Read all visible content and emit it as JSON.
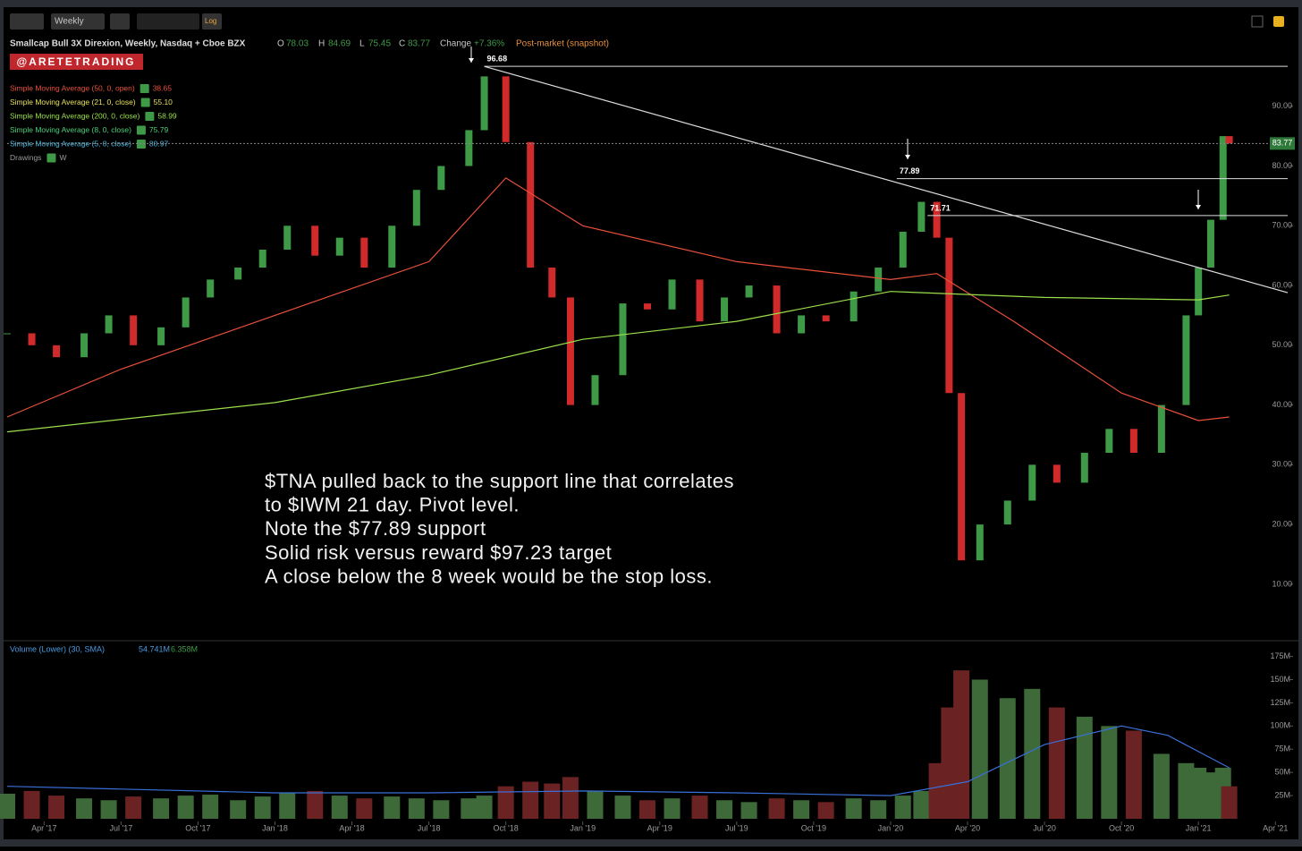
{
  "toolbar": {
    "interval": "Weekly",
    "log": "Log"
  },
  "header": {
    "symbol": "Smallcap Bull 3X Direxion, Weekly, Nasdaq + Cboe BZX",
    "open_label": "O",
    "open": "78.03",
    "high_label": "H",
    "high": "84.69",
    "low_label": "L",
    "low": "75.45",
    "close_label": "C",
    "close": "83.77",
    "change_label": "Change",
    "change": "+7.36%",
    "session": "Post-market (snapshot)",
    "badge": "@ARETETRADING"
  },
  "studies": [
    {
      "label": "Simple Moving Average (50, 0, open)",
      "value": "38.65",
      "color": "#e8503a"
    },
    {
      "label": "Simple Moving Average (21, 0, close)",
      "value": "55.10",
      "color": "#e6e05a"
    },
    {
      "label": "Simple Moving Average (200, 0, close)",
      "value": "58.99",
      "color": "#9be04a"
    },
    {
      "label": "Simple Moving Average (8, 0, close)",
      "value": "75.79",
      "color": "#4ad07a"
    },
    {
      "label": "Simple Moving Average (5, 0, close)",
      "value": "80.97",
      "color": "#4ab8e0"
    },
    {
      "label": "Drawings",
      "value": "W",
      "color": "#9a9a9a"
    }
  ],
  "volume_study": {
    "label": "Volume (Lower) (30, SMA)",
    "value": "54.741M",
    "value2": "6.358M"
  },
  "annotation": [
    "$TNA pulled back to the support line that correlates",
    "to $IWM 21 day. Pivot level.",
    "Note the $77.89 support",
    "Solid risk versus reward $97.23 target",
    "A close below the 8 week would be the stop loss."
  ],
  "chart_data": [
    {
      "type": "candlestick",
      "x": [
        2017.13,
        2017.21,
        2017.29,
        2017.38,
        2017.46,
        2017.54,
        2017.63,
        2017.71,
        2017.79,
        2017.88,
        2017.96,
        2018.04,
        2018.13,
        2018.21,
        2018.29,
        2018.38,
        2018.46,
        2018.54,
        2018.63,
        2018.68,
        2018.75,
        2018.83,
        2018.9,
        2018.96,
        2019.04,
        2019.13,
        2019.21,
        2019.29,
        2019.38,
        2019.46,
        2019.54,
        2019.63,
        2019.71,
        2019.79,
        2019.88,
        2019.96,
        2020.04,
        2020.1,
        2020.15,
        2020.19,
        2020.23,
        2020.29,
        2020.38,
        2020.46,
        2020.54,
        2020.63,
        2020.71,
        2020.79,
        2020.88,
        2020.96,
        2021.0,
        2021.04,
        2021.08,
        2021.1
      ],
      "series": [
        {
          "name": "Close",
          "values": [
            52,
            50,
            48,
            52,
            55,
            50,
            53,
            58,
            61,
            63,
            66,
            70,
            65,
            68,
            63,
            70,
            76,
            80,
            86,
            95,
            84,
            63,
            58,
            40,
            45,
            57,
            56,
            61,
            54,
            58,
            60,
            52,
            55,
            54,
            59,
            63,
            69,
            74,
            68,
            42,
            14,
            20,
            24,
            30,
            27,
            32,
            36,
            32,
            40,
            55,
            63,
            71,
            85,
            83.77
          ],
          "up_color": "#3f9a48",
          "down_color": "#d02a2a"
        },
        {
          "name": "SMA 50",
          "color": "#e8503a",
          "x": [
            2017.13,
            2017.5,
            2018.0,
            2018.5,
            2018.75,
            2019.0,
            2019.5,
            2020.0,
            2020.15,
            2020.4,
            2020.75,
            2021.0,
            2021.1
          ],
          "values": [
            38,
            46,
            55,
            64,
            78,
            70,
            64,
            61,
            62,
            54,
            42,
            37.4,
            38
          ]
        },
        {
          "name": "SMA 200",
          "color": "#9be04a",
          "x": [
            2017.13,
            2018.0,
            2018.5,
            2019.0,
            2019.5,
            2020.0,
            2020.5,
            2021.0,
            2021.1
          ],
          "values": [
            35.5,
            40.4,
            45,
            51,
            54,
            59,
            58,
            57.6,
            58.4
          ]
        }
      ],
      "levels": [
        {
          "value": 96.68,
          "from": 2018.68
        },
        {
          "value": 77.89,
          "from": 2020.02
        },
        {
          "value": 71.71,
          "from": 2020.12
        }
      ],
      "trendline": {
        "x": [
          2018.68,
          2021.29
        ],
        "y": [
          96.68,
          58.8
        ]
      },
      "last_price": 83.77,
      "xlim": [
        2017.13,
        2021.29
      ],
      "ylim": [
        0.7,
        98.8
      ],
      "yticks": [
        {
          "value": 10,
          "label": "10.00"
        },
        {
          "value": 20,
          "label": "20.00"
        },
        {
          "value": 30,
          "label": "30.00"
        },
        {
          "value": 40,
          "label": "40.00"
        },
        {
          "value": 50,
          "label": "50.00"
        },
        {
          "value": 60,
          "label": "60.00"
        },
        {
          "value": 70,
          "label": "70.00"
        },
        {
          "value": 80,
          "label": "80.00"
        },
        {
          "value": 90,
          "label": "90.00"
        }
      ]
    },
    {
      "type": "bar",
      "x": [
        2017.13,
        2017.21,
        2017.29,
        2017.38,
        2017.46,
        2017.54,
        2017.63,
        2017.71,
        2017.79,
        2017.88,
        2017.96,
        2018.04,
        2018.13,
        2018.21,
        2018.29,
        2018.38,
        2018.46,
        2018.54,
        2018.63,
        2018.68,
        2018.75,
        2018.83,
        2018.9,
        2018.96,
        2019.04,
        2019.13,
        2019.21,
        2019.29,
        2019.38,
        2019.46,
        2019.54,
        2019.63,
        2019.71,
        2019.79,
        2019.88,
        2019.96,
        2020.04,
        2020.1,
        2020.15,
        2020.19,
        2020.23,
        2020.29,
        2020.38,
        2020.46,
        2020.54,
        2020.63,
        2020.71,
        2020.79,
        2020.88,
        2020.96,
        2021.0,
        2021.04,
        2021.08,
        2021.1
      ],
      "values": [
        27,
        30,
        25,
        22,
        20,
        24,
        22,
        25,
        26,
        20,
        24,
        28,
        30,
        25,
        22,
        24,
        22,
        20,
        22,
        25,
        35,
        40,
        38,
        45,
        30,
        25,
        20,
        22,
        25,
        20,
        18,
        22,
        20,
        18,
        22,
        20,
        25,
        30,
        60,
        120,
        160,
        150,
        130,
        140,
        120,
        110,
        100,
        95,
        70,
        60,
        55,
        50,
        55,
        35
      ],
      "sma": {
        "name": "Volume SMA",
        "color": "#3a6fd8",
        "x": [
          2017.13,
          2017.5,
          2018.0,
          2018.5,
          2019.0,
          2019.5,
          2020.0,
          2020.25,
          2020.5,
          2020.75,
          2020.9,
          2021.1
        ],
        "values": [
          35,
          32,
          28,
          28,
          30,
          28,
          25,
          40,
          80,
          100,
          90,
          55
        ]
      },
      "xlim": [
        2017.13,
        2021.29
      ],
      "ylim": [
        0,
        190
      ],
      "yticks": [
        {
          "value": 25,
          "label": "25M"
        },
        {
          "value": 50,
          "label": "50M"
        },
        {
          "value": 75,
          "label": "75M"
        },
        {
          "value": 100,
          "label": "100M"
        },
        {
          "value": 125,
          "label": "125M"
        },
        {
          "value": 150,
          "label": "150M"
        },
        {
          "value": 175,
          "label": "175M"
        }
      ],
      "xticks": [
        {
          "value": 2017.25,
          "label": "Apr '17"
        },
        {
          "value": 2017.5,
          "label": "Jul '17"
        },
        {
          "value": 2017.75,
          "label": "Oct '17"
        },
        {
          "value": 2018.0,
          "label": "Jan '18"
        },
        {
          "value": 2018.25,
          "label": "Apr '18"
        },
        {
          "value": 2018.5,
          "label": "Jul '18"
        },
        {
          "value": 2018.75,
          "label": "Oct '18"
        },
        {
          "value": 2019.0,
          "label": "Jan '19"
        },
        {
          "value": 2019.25,
          "label": "Apr '19"
        },
        {
          "value": 2019.5,
          "label": "Jul '19"
        },
        {
          "value": 2019.75,
          "label": "Oct '19"
        },
        {
          "value": 2020.0,
          "label": "Jan '20"
        },
        {
          "value": 2020.25,
          "label": "Apr '20"
        },
        {
          "value": 2020.5,
          "label": "Jul '20"
        },
        {
          "value": 2020.75,
          "label": "Oct '20"
        },
        {
          "value": 2021.0,
          "label": "Jan '21"
        },
        {
          "value": 2021.25,
          "label": "Apr '21"
        }
      ]
    }
  ]
}
